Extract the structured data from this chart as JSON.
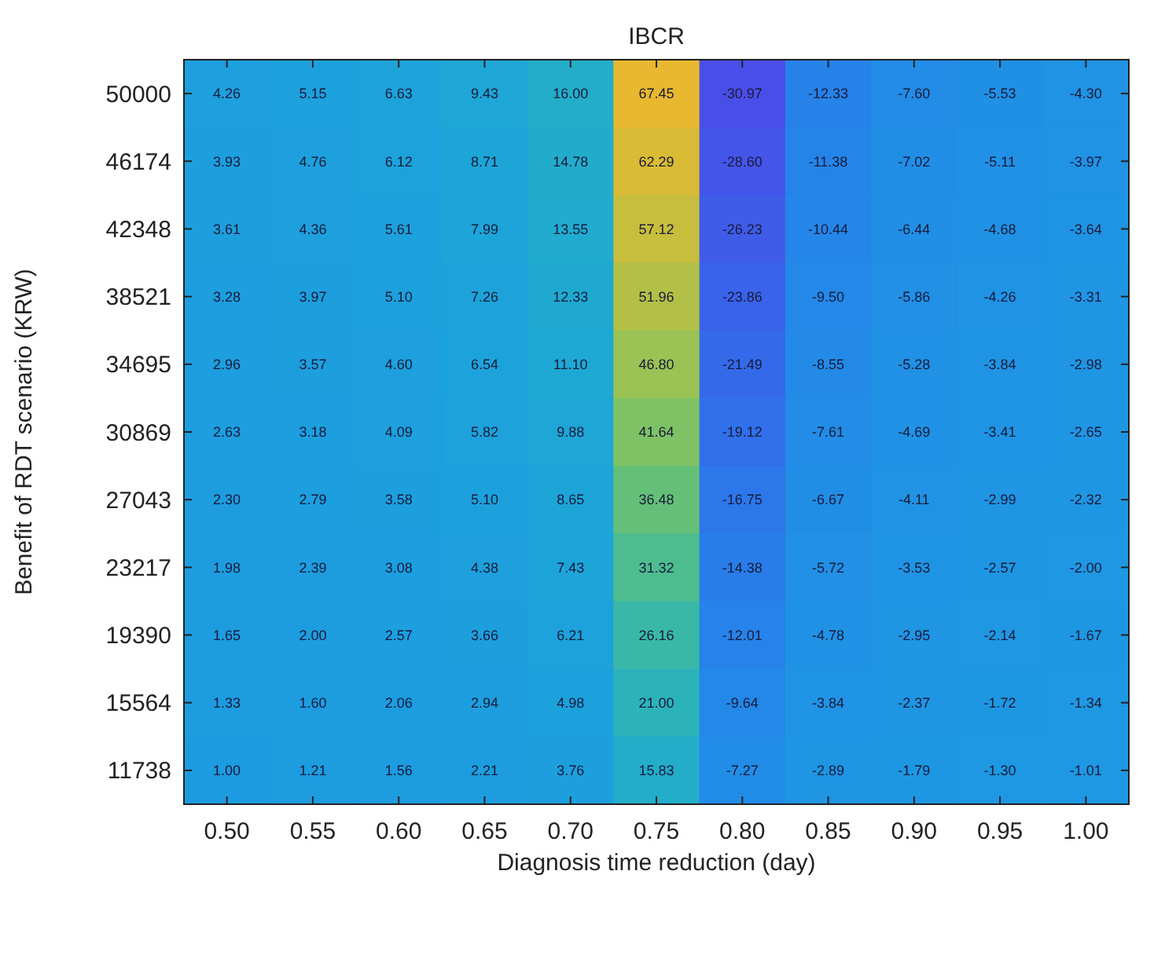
{
  "chart_data": {
    "type": "heatmap",
    "title": "IBCR",
    "xlabel": "Diagnosis time reduction (day)",
    "ylabel": "Benefit of RDT scenario (KRW)",
    "categories": [
      "0.50",
      "0.55",
      "0.60",
      "0.65",
      "0.70",
      "0.75",
      "0.80",
      "0.85",
      "0.90",
      "0.95",
      "1.00"
    ],
    "y_categories": [
      "50000",
      "46174",
      "42348",
      "38521",
      "34695",
      "30869",
      "27043",
      "23217",
      "19390",
      "15564",
      "11738"
    ],
    "data_labels": true,
    "cells": [
      [
        4.26,
        5.15,
        6.63,
        9.43,
        16.0,
        67.45,
        -30.97,
        -12.33,
        -7.6,
        -5.53,
        -4.3
      ],
      [
        3.93,
        4.76,
        6.12,
        8.71,
        14.78,
        62.29,
        -28.6,
        -11.38,
        -7.02,
        -5.11,
        -3.97
      ],
      [
        3.61,
        4.36,
        5.61,
        7.99,
        13.55,
        57.12,
        -26.23,
        -10.44,
        -6.44,
        -4.68,
        -3.64
      ],
      [
        3.28,
        3.97,
        5.1,
        7.26,
        12.33,
        51.96,
        -23.86,
        -9.5,
        -5.86,
        -4.26,
        -3.31
      ],
      [
        2.96,
        3.57,
        4.6,
        6.54,
        11.1,
        46.8,
        -21.49,
        -8.55,
        -5.28,
        -3.84,
        -2.98
      ],
      [
        2.63,
        3.18,
        4.09,
        5.82,
        9.88,
        41.64,
        -19.12,
        -7.61,
        -4.69,
        -3.41,
        -2.65
      ],
      [
        2.3,
        2.79,
        3.58,
        5.1,
        8.65,
        36.48,
        -16.75,
        -6.67,
        -4.11,
        -2.99,
        -2.32
      ],
      [
        1.98,
        2.39,
        3.08,
        4.38,
        7.43,
        31.32,
        -14.38,
        -5.72,
        -3.53,
        -2.57,
        -2.0
      ],
      [
        1.65,
        2.0,
        2.57,
        3.66,
        6.21,
        26.16,
        -12.01,
        -4.78,
        -2.95,
        -2.14,
        -1.67
      ],
      [
        1.33,
        1.6,
        2.06,
        2.94,
        4.98,
        21.0,
        -9.64,
        -3.84,
        -2.37,
        -1.72,
        -1.34
      ],
      [
        1.0,
        1.21,
        1.56,
        2.21,
        3.76,
        15.83,
        -7.27,
        -2.89,
        -1.79,
        -1.3,
        -1.01
      ]
    ],
    "cell_labels": [
      [
        "4.26",
        "5.15",
        "6.63",
        "9.43",
        "16.00",
        "67.45",
        "-30.97",
        "-12.33",
        "-7.60",
        "-5.53",
        "-4.30"
      ],
      [
        "3.93",
        "4.76",
        "6.12",
        "8.71",
        "14.78",
        "62.29",
        "-28.60",
        "-11.38",
        "-7.02",
        "-5.11",
        "-3.97"
      ],
      [
        "3.61",
        "4.36",
        "5.61",
        "7.99",
        "13.55",
        "57.12",
        "-26.23",
        "-10.44",
        "-6.44",
        "-4.68",
        "-3.64"
      ],
      [
        "3.28",
        "3.97",
        "5.10",
        "7.26",
        "12.33",
        "51.96",
        "-23.86",
        "-9.50",
        "-5.86",
        "-4.26",
        "-3.31"
      ],
      [
        "2.96",
        "3.57",
        "4.60",
        "6.54",
        "11.10",
        "46.80",
        "-21.49",
        "-8.55",
        "-5.28",
        "-3.84",
        "-2.98"
      ],
      [
        "2.63",
        "3.18",
        "4.09",
        "5.82",
        "9.88",
        "41.64",
        "-19.12",
        "-7.61",
        "-4.69",
        "-3.41",
        "-2.65"
      ],
      [
        "2.30",
        "2.79",
        "3.58",
        "5.10",
        "8.65",
        "36.48",
        "-16.75",
        "-6.67",
        "-4.11",
        "-2.99",
        "-2.32"
      ],
      [
        "1.98",
        "2.39",
        "3.08",
        "4.38",
        "7.43",
        "31.32",
        "-14.38",
        "-5.72",
        "-3.53",
        "-2.57",
        "-2.00"
      ],
      [
        "1.65",
        "2.00",
        "2.57",
        "3.66",
        "6.21",
        "26.16",
        "-12.01",
        "-4.78",
        "-2.95",
        "-2.14",
        "-1.67"
      ],
      [
        "1.33",
        "1.60",
        "2.06",
        "2.94",
        "4.98",
        "21.00",
        "-9.64",
        "-3.84",
        "-2.37",
        "-1.72",
        "-1.34"
      ],
      [
        "1.00",
        "1.21",
        "1.56",
        "2.21",
        "3.76",
        "15.83",
        "-7.27",
        "-2.89",
        "-1.79",
        "-1.30",
        "-1.01"
      ]
    ]
  }
}
